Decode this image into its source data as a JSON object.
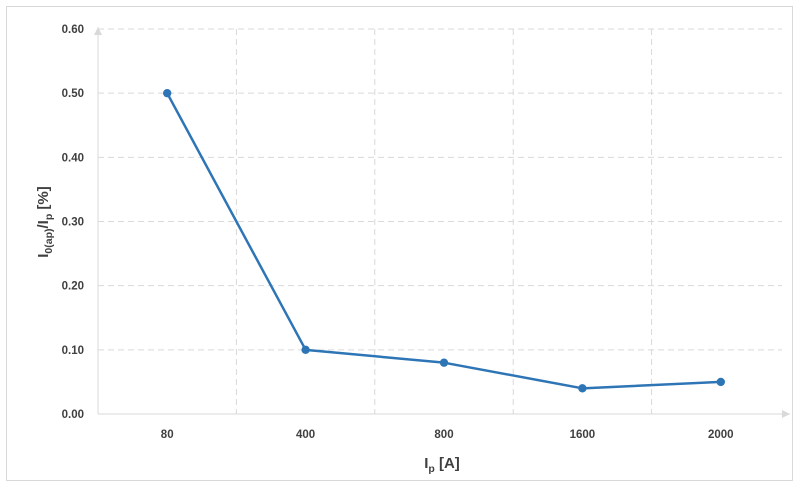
{
  "chart_data": {
    "type": "line",
    "title": "",
    "xlabel": "I_p [A]",
    "xlabel_main": "I",
    "xlabel_sub": "p",
    "xlabel_rest": " [A]",
    "ylabel": "I_0(ap)/I_p [%]",
    "ylabel_parts": {
      "i1": "I",
      "sub1": "0(ap)",
      "slash": "/I",
      "sub2": "p",
      "rest": " [%]"
    },
    "categories": [
      "80",
      "400",
      "800",
      "1600",
      "2000"
    ],
    "series": [
      {
        "values": [
          0.5,
          0.1,
          0.08,
          0.04,
          0.05
        ],
        "color": "#2e75b6"
      }
    ],
    "ylim": [
      0,
      0.6
    ],
    "yticks": [
      "0.00",
      "0.10",
      "0.20",
      "0.30",
      "0.40",
      "0.50",
      "0.60"
    ],
    "grid": true,
    "grid_style": "dashed"
  }
}
